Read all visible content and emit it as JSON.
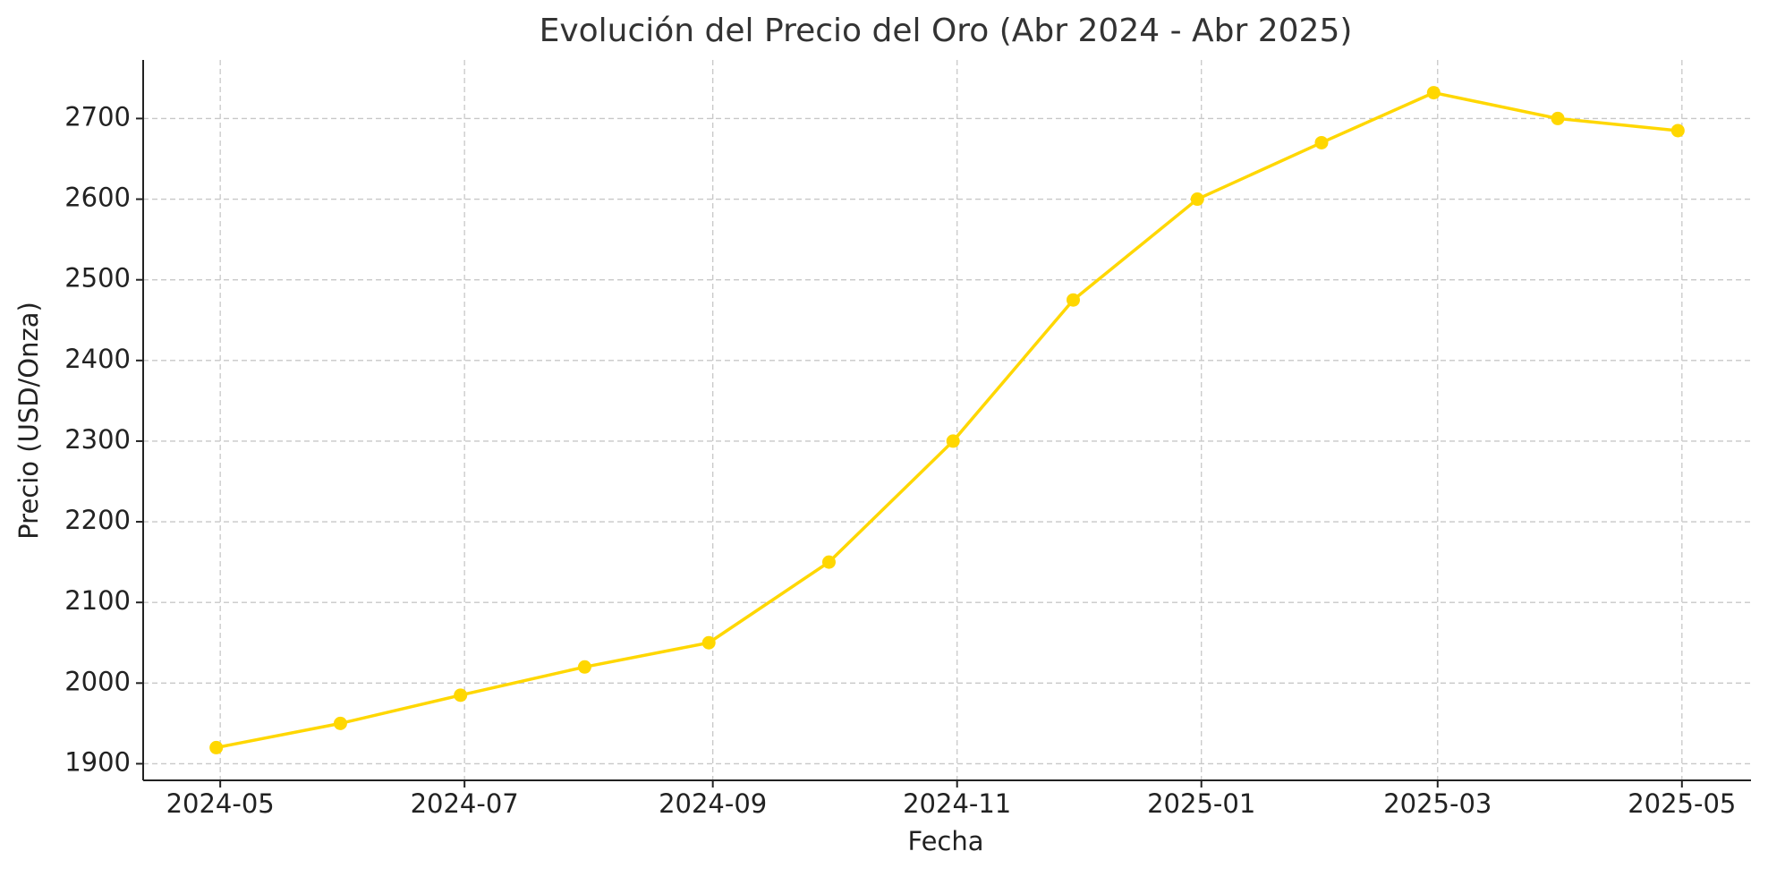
{
  "chart_data": {
    "type": "line",
    "title": "Evolución del Precio del Oro (Abr 2024 - Abr 2025)",
    "x_label": "Fecha",
    "y_label": "Precio (USD/Onza)",
    "x": [
      "2024-04",
      "2024-05",
      "2024-06",
      "2024-07",
      "2024-08",
      "2024-09",
      "2024-10",
      "2024-11",
      "2024-12",
      "2025-01",
      "2025-02",
      "2025-03",
      "2025-04"
    ],
    "values": [
      1920,
      1950,
      1985,
      2020,
      2050,
      2150,
      2300,
      2475,
      2600,
      2670,
      2732,
      2700,
      2685
    ],
    "color": "#FFD700",
    "ylim": [
      1879.4,
      2772.6
    ],
    "yticks": [
      1900,
      2000,
      2100,
      2200,
      2300,
      2400,
      2500,
      2600,
      2700
    ],
    "xticks": [
      "2024-05",
      "2024-07",
      "2024-09",
      "2024-11",
      "2025-01",
      "2025-03",
      "2025-05"
    ],
    "grid": true
  }
}
